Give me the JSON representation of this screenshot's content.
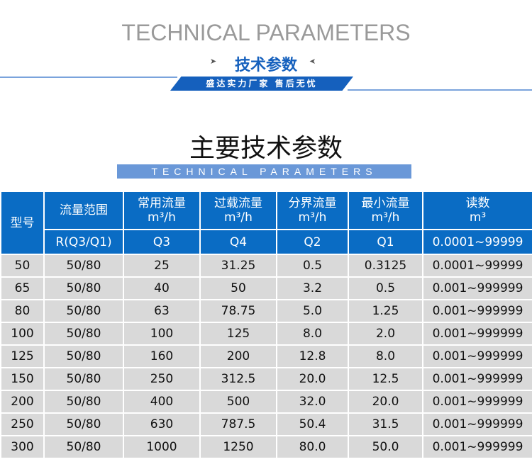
{
  "header": {
    "en_title": "TECHNICAL PARAMETERS",
    "cn_subtitle": "技术参数",
    "banner": "盛达实力厂家  售后无忧",
    "main_title": "主要技术参数",
    "en_band": "TECHNICAL  PARAMETERS",
    "accent_color": "#1560bd"
  },
  "table": {
    "headers": {
      "model": "型号",
      "range": "流量范围",
      "q3": {
        "name": "常用流量",
        "unit": "m³/h",
        "code": "Q3"
      },
      "q4": {
        "name": "过载流量",
        "unit": "m³/h",
        "code": "Q4"
      },
      "q2": {
        "name": "分界流量",
        "unit": "m³/h",
        "code": "Q2"
      },
      "q1": {
        "name": "最小流量",
        "unit": "m³/h",
        "code": "Q1"
      },
      "reading": {
        "name": "读数",
        "unit": "m³",
        "code": "0.0001~99999"
      },
      "range_code": "R(Q3/Q1)"
    },
    "rows": [
      [
        "50",
        "50/80",
        "25",
        "31.25",
        "0.5",
        "0.3125",
        "0.0001~99999"
      ],
      [
        "65",
        "50/80",
        "40",
        "50",
        "3.2",
        "0.5",
        "0.001~999999"
      ],
      [
        "80",
        "50/80",
        "63",
        "78.75",
        "5.0",
        "1.25",
        "0.001~999999"
      ],
      [
        "100",
        "50/80",
        "100",
        "125",
        "8.0",
        "2.0",
        "0.001~999999"
      ],
      [
        "125",
        "50/80",
        "160",
        "200",
        "12.8",
        "8.0",
        "0.001~999999"
      ],
      [
        "150",
        "50/80",
        "250",
        "312.5",
        "20.0",
        "12.5",
        "0.001~999999"
      ],
      [
        "200",
        "50/80",
        "400",
        "500",
        "32.0",
        "20.0",
        "0.001~999999"
      ],
      [
        "250",
        "50/80",
        "630",
        "787.5",
        "50.4",
        "31.5",
        "0.001~999999"
      ],
      [
        "300",
        "50/80",
        "1000",
        "1250",
        "80.0",
        "50.0",
        "0.001~999999"
      ]
    ]
  }
}
